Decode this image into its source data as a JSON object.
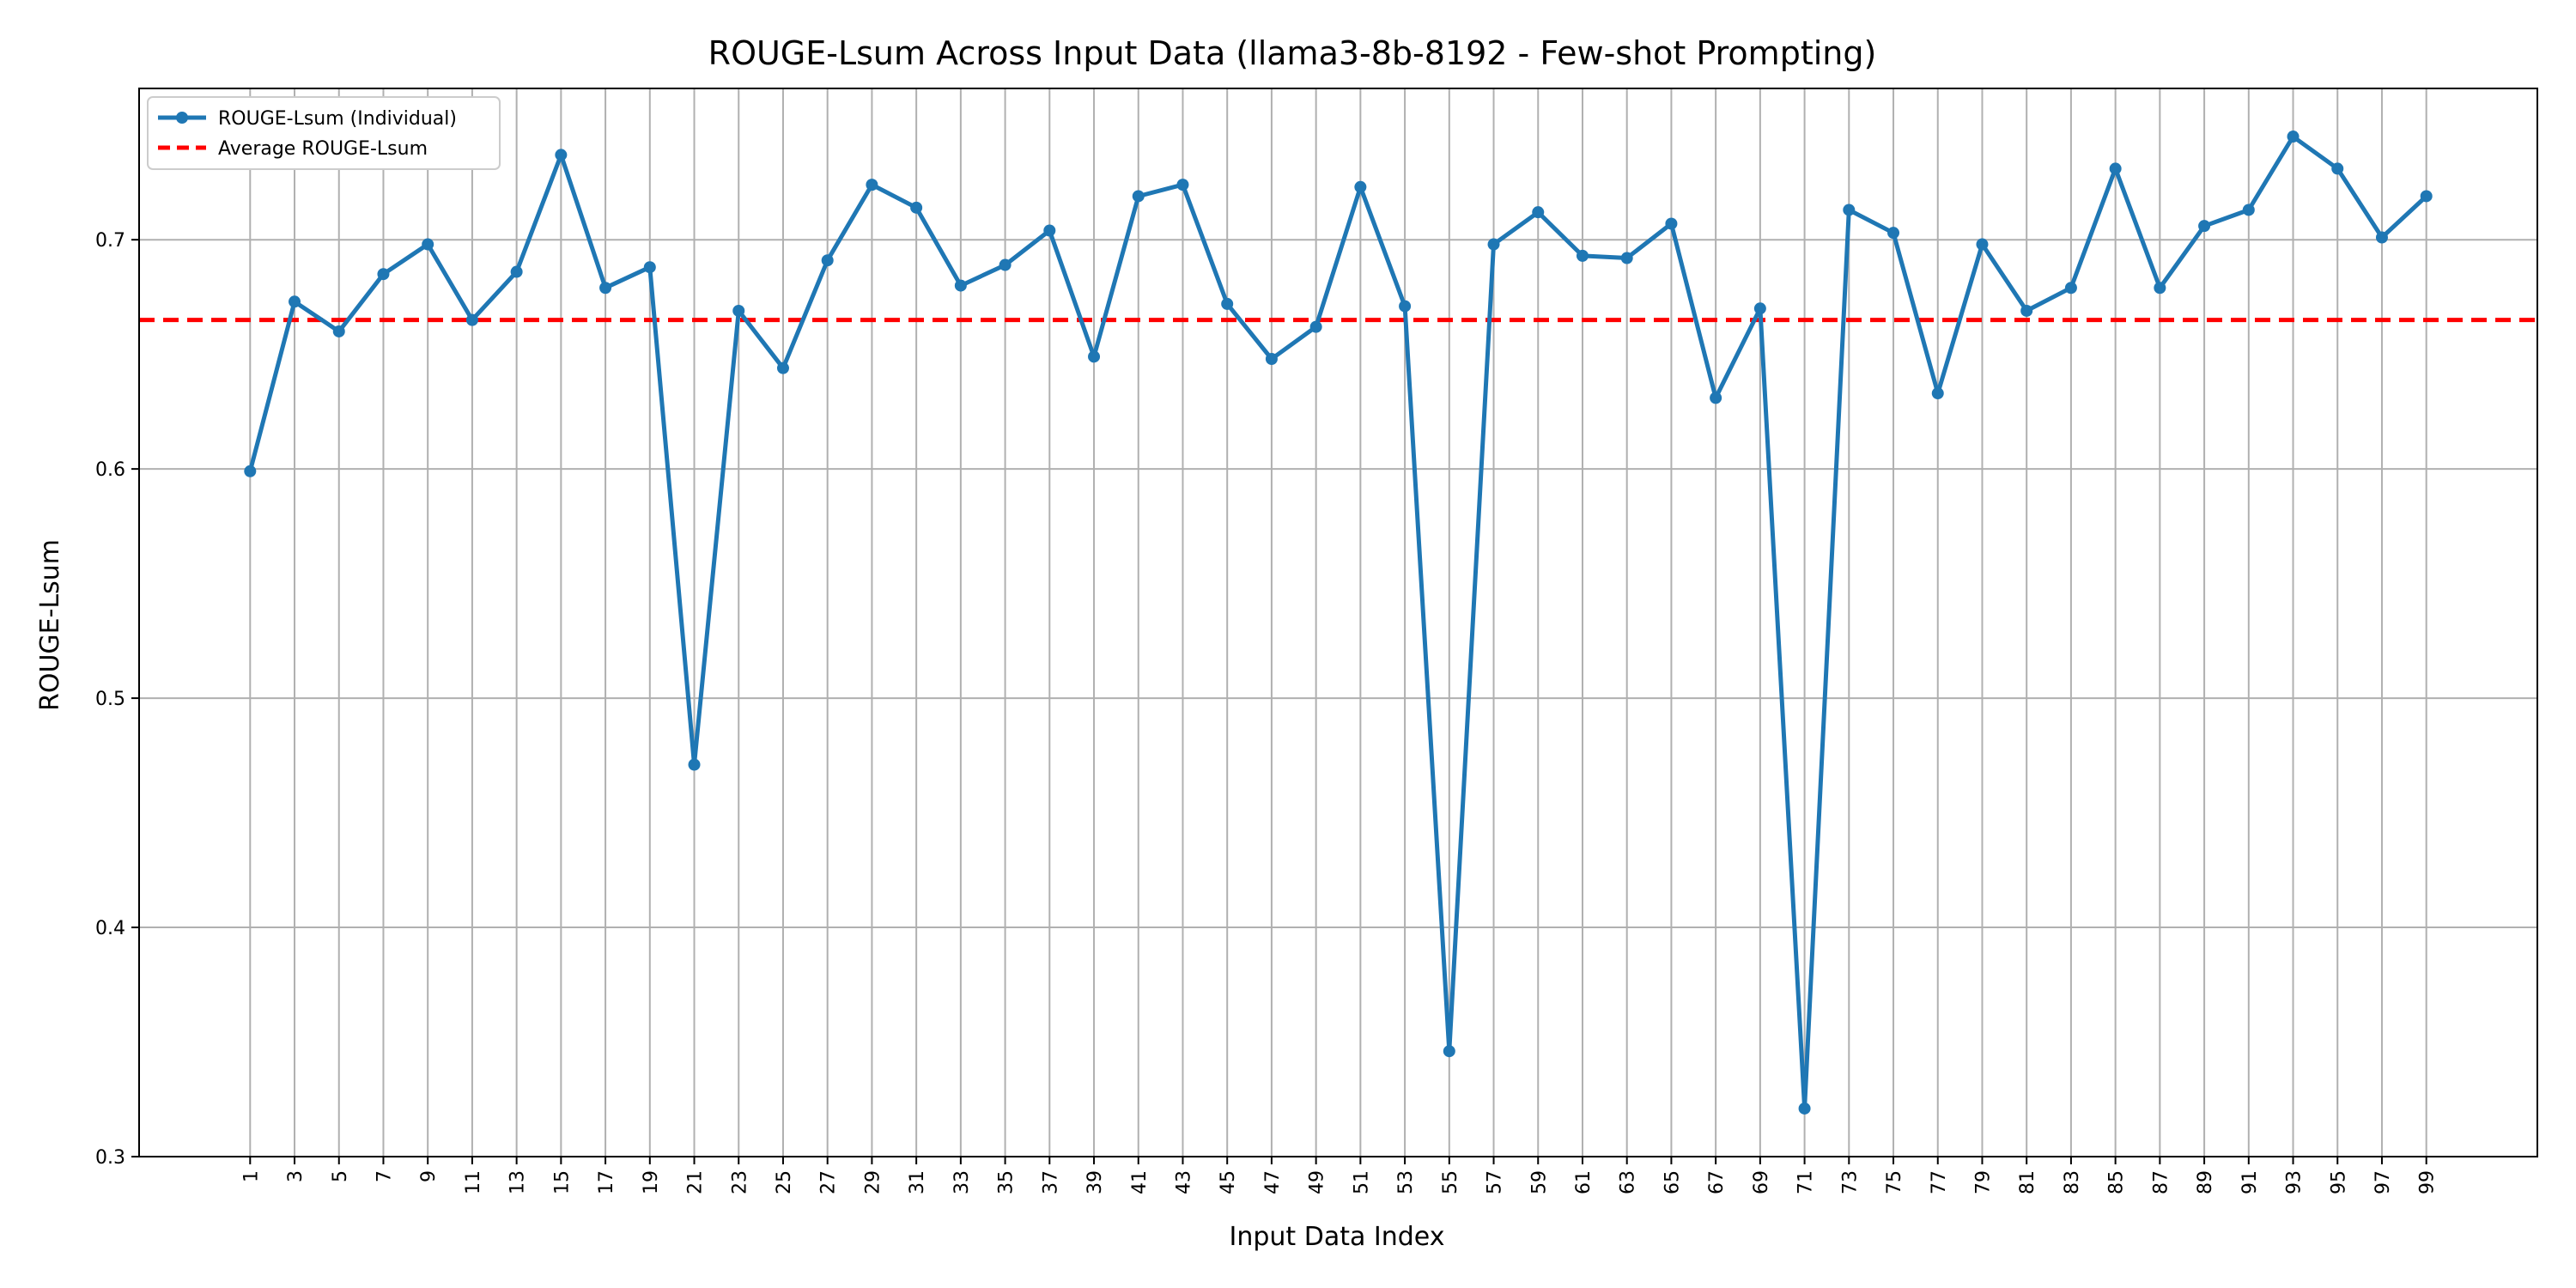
{
  "chart_data": {
    "type": "line",
    "title": "ROUGE-Lsum Across Input Data (llama3-8b-8192 - Few-shot Prompting)",
    "xlabel": "Input Data Index",
    "ylabel": "ROUGE-Lsum",
    "x": [
      1,
      3,
      5,
      7,
      9,
      11,
      13,
      15,
      17,
      19,
      21,
      23,
      25,
      27,
      29,
      31,
      33,
      35,
      37,
      39,
      41,
      43,
      45,
      47,
      49,
      51,
      53,
      55,
      57,
      59,
      61,
      63,
      65,
      67,
      69,
      71,
      73,
      75,
      77,
      79,
      81,
      83,
      85,
      87,
      89,
      91,
      93,
      95,
      97,
      99
    ],
    "x_ticks": [
      "1",
      "3",
      "5",
      "7",
      "9",
      "11",
      "13",
      "15",
      "17",
      "19",
      "21",
      "23",
      "25",
      "27",
      "29",
      "31",
      "33",
      "35",
      "37",
      "39",
      "41",
      "43",
      "45",
      "47",
      "49",
      "51",
      "53",
      "55",
      "57",
      "59",
      "61",
      "63",
      "65",
      "67",
      "69",
      "71",
      "73",
      "75",
      "77",
      "79",
      "81",
      "83",
      "85",
      "87",
      "89",
      "91",
      "93",
      "95",
      "97",
      "99"
    ],
    "xlim": [
      -4,
      104
    ],
    "ylim": [
      0.3,
      0.766
    ],
    "y_ticks": [
      0.3,
      0.4,
      0.5,
      0.6,
      0.7
    ],
    "y_tick_labels": [
      "0.3",
      "0.4",
      "0.5",
      "0.6",
      "0.7"
    ],
    "grid": true,
    "legend_position": "top-left",
    "series": [
      {
        "name": "ROUGE-Lsum (Individual)",
        "color": "#1f77b4",
        "style": "solid-with-markers",
        "values": [
          0.599,
          0.673,
          0.66,
          0.685,
          0.698,
          0.665,
          0.686,
          0.737,
          0.679,
          0.688,
          0.471,
          0.669,
          0.644,
          0.691,
          0.724,
          0.714,
          0.68,
          0.689,
          0.704,
          0.649,
          0.719,
          0.724,
          0.672,
          0.648,
          0.662,
          0.723,
          0.671,
          0.346,
          0.698,
          0.712,
          0.693,
          0.692,
          0.707,
          0.631,
          0.67,
          0.321,
          0.713,
          0.703,
          0.633,
          0.698,
          0.669,
          0.679,
          0.731,
          0.679,
          0.706,
          0.713,
          0.745,
          0.731,
          0.701,
          0.719
        ]
      },
      {
        "name": "Average ROUGE-Lsum",
        "color": "#ff0000",
        "style": "dashed",
        "value": 0.665
      }
    ]
  }
}
